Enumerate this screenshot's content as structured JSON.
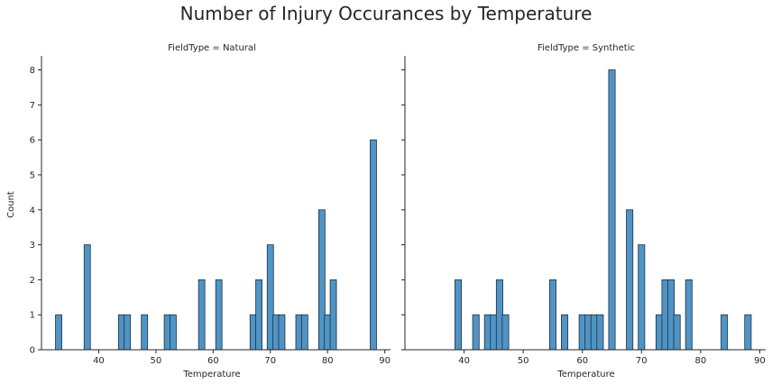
{
  "title": "Number of Injury Occurances by Temperature",
  "colors": {
    "bar_fill": "#4f94c4",
    "bar_edge": "#1f2f3f",
    "axis": "#262626"
  },
  "chart_data": [
    {
      "type": "bar",
      "panel_title": "FieldType = Natural",
      "xlabel": "Temperature",
      "ylabel": "Count",
      "xlim": [
        30,
        91
      ],
      "ylim": [
        0,
        8.4
      ],
      "xticks": [
        40,
        50,
        60,
        70,
        80,
        90
      ],
      "yticks": [
        0,
        1,
        2,
        3,
        4,
        5,
        6,
        7,
        8
      ],
      "bin_width": 1.1,
      "x": [
        33,
        38,
        44,
        45,
        48,
        52,
        53,
        58,
        61,
        67,
        68,
        70,
        71,
        72,
        75,
        76,
        79,
        80,
        81,
        88
      ],
      "values": [
        1,
        3,
        1,
        1,
        1,
        1,
        1,
        2,
        2,
        1,
        2,
        3,
        1,
        1,
        1,
        1,
        4,
        1,
        2,
        6
      ]
    },
    {
      "type": "bar",
      "panel_title": "FieldType = Synthetic",
      "xlabel": "Temperature",
      "ylabel": "",
      "xlim": [
        30,
        91
      ],
      "ylim": [
        0,
        8.4
      ],
      "xticks": [
        40,
        50,
        60,
        70,
        80,
        90
      ],
      "yticks": [
        0,
        1,
        2,
        3,
        4,
        5,
        6,
        7,
        8
      ],
      "bin_width": 1.1,
      "x": [
        39,
        42,
        44,
        45,
        46,
        47,
        55,
        57,
        60,
        61,
        62,
        63,
        65,
        68,
        70,
        73,
        74,
        75,
        76,
        78,
        84,
        88
      ],
      "values": [
        2,
        1,
        1,
        1,
        2,
        1,
        2,
        1,
        1,
        1,
        1,
        1,
        8,
        4,
        3,
        1,
        2,
        2,
        1,
        2,
        1,
        1
      ]
    }
  ]
}
